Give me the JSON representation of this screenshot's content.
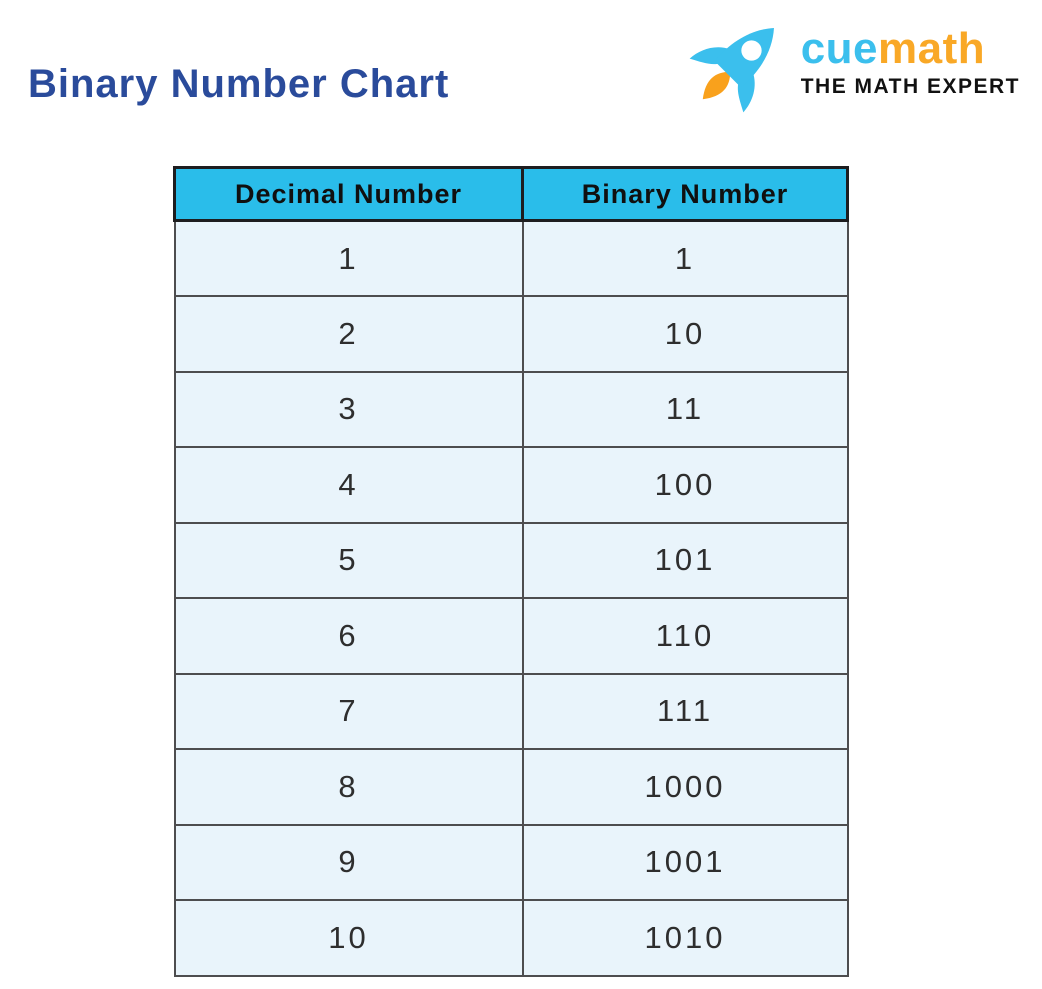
{
  "page": {
    "title": "Binary Number Chart"
  },
  "logo": {
    "brand_cue": "cue",
    "brand_math": "math",
    "tagline": "THE MATH EXPERT"
  },
  "colors": {
    "title_navy": "#2a4b9b",
    "header_cyan": "#2abdea",
    "cell_background": "#e9f4fb",
    "border_gray": "#4d4d4f",
    "header_border_black": "#1d1d1f",
    "logo_cue_cyan": "#3bbfed",
    "logo_math_orange": "#f9a826",
    "rocket_blue": "#3bbfed",
    "flame_orange": "#f9a11c"
  },
  "chart_data": {
    "type": "table",
    "title": "Binary Number Chart",
    "columns": [
      "Decimal Number",
      "Binary Number"
    ],
    "rows": [
      [
        "1",
        "1"
      ],
      [
        "2",
        "10"
      ],
      [
        "3",
        "11"
      ],
      [
        "4",
        "100"
      ],
      [
        "5",
        "101"
      ],
      [
        "6",
        "110"
      ],
      [
        "7",
        "111"
      ],
      [
        "8",
        "1000"
      ],
      [
        "9",
        "1001"
      ],
      [
        "10",
        "1010"
      ]
    ]
  }
}
